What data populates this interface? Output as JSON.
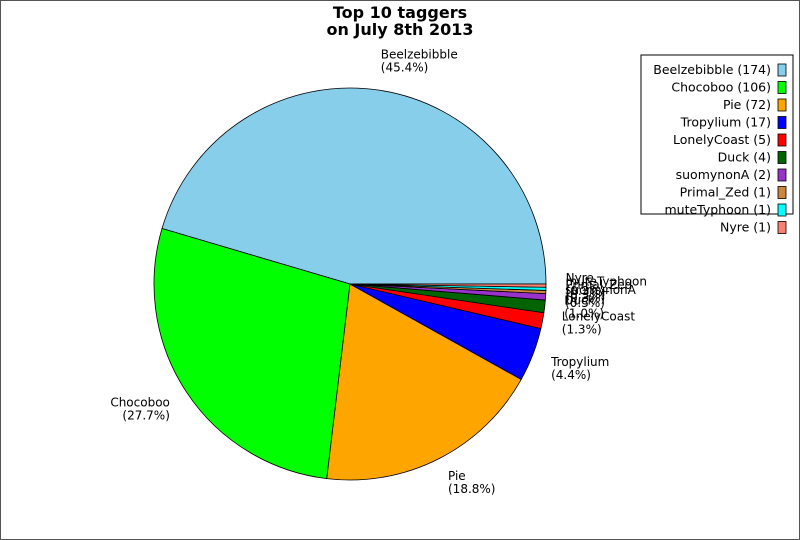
{
  "chart_data": {
    "type": "pie",
    "title_lines": [
      "Top 10 taggers",
      "on July 8th 2013"
    ],
    "legend_placement": "top-right",
    "slices": [
      {
        "name": "Beelzebibble",
        "value": 174,
        "percent_label": "(45.4%)",
        "legend": "Beelzebibble (174)",
        "color": "#87ceeb"
      },
      {
        "name": "Chocoboo",
        "value": 106,
        "percent_label": "(27.7%)",
        "legend": "Chocoboo (106)",
        "color": "#00ff00"
      },
      {
        "name": "Pie",
        "value": 72,
        "percent_label": "(18.8%)",
        "legend": "Pie (72)",
        "color": "#ffa500"
      },
      {
        "name": "Tropylium",
        "value": 17,
        "percent_label": "(4.4%)",
        "legend": "Tropylium (17)",
        "color": "#0000ff"
      },
      {
        "name": "LonelyCoast",
        "value": 5,
        "percent_label": "(1.3%)",
        "legend": "LonelyCoast (5)",
        "color": "#ff0000"
      },
      {
        "name": "Duck",
        "value": 4,
        "percent_label": "(1.0%)",
        "legend": "Duck (4)",
        "color": "#006400"
      },
      {
        "name": "suomynonA",
        "value": 2,
        "percent_label": "(0.5%)",
        "legend": "suomynonA (2)",
        "color": "#9932cc"
      },
      {
        "name": "Primal_Zed",
        "value": 1,
        "percent_label": "(0.3%)",
        "legend": "Primal_Zed (1)",
        "color": "#cd853f"
      },
      {
        "name": "muteTyphoon",
        "value": 1,
        "percent_label": "(0.3%)",
        "legend": "muteTyphoon (1)",
        "color": "#00ffff"
      },
      {
        "name": "Nyre",
        "value": 1,
        "percent_label": "(0.3%)",
        "legend": "Nyre (1)",
        "color": "#fa8072"
      }
    ]
  }
}
